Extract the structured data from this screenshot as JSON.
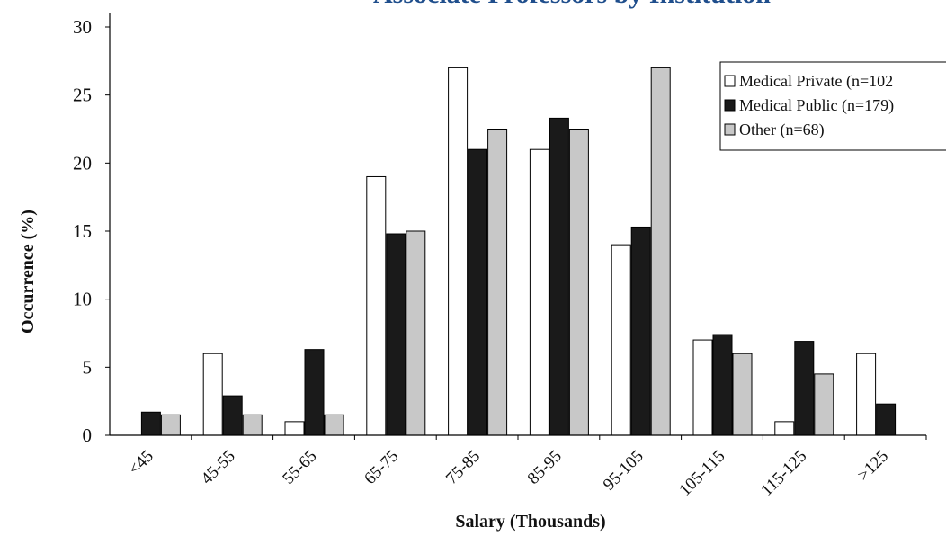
{
  "chart_data": {
    "type": "bar",
    "title": "Associate Professors by Institution",
    "xlabel": "Salary (Thousands)",
    "ylabel": "Occurrence (%)",
    "ylim": [
      0,
      30
    ],
    "yticks": [
      0,
      5,
      10,
      15,
      20,
      25,
      30
    ],
    "grid": false,
    "legend_position": "top-right",
    "categories": [
      "<45",
      "45-55",
      "55-65",
      "65-75",
      "75-85",
      "85-95",
      "95-105",
      "105-115",
      "115-125",
      ">125"
    ],
    "series": [
      {
        "name": "Medical Private",
        "legend_label": "Medical Private (n=102",
        "color": "#ffffff",
        "values": [
          0,
          6.0,
          1.0,
          19.0,
          27.0,
          21.0,
          14.0,
          7.0,
          1.0,
          6.0
        ]
      },
      {
        "name": "Medical Public",
        "legend_label": "Medical Public  (n=179)",
        "color": "#1a1a1a",
        "values": [
          1.7,
          2.9,
          6.3,
          14.8,
          21.0,
          23.3,
          15.3,
          7.4,
          6.9,
          2.3
        ]
      },
      {
        "name": "Other",
        "legend_label": "Other  (n=68)",
        "color": "#c8c8c8",
        "values": [
          1.5,
          1.5,
          1.5,
          15.0,
          22.5,
          22.5,
          27.0,
          6.0,
          4.5,
          0
        ]
      }
    ]
  },
  "colors": {
    "title": "#1f4e8c",
    "axis": "#000000",
    "bar_stroke": "#000000"
  }
}
